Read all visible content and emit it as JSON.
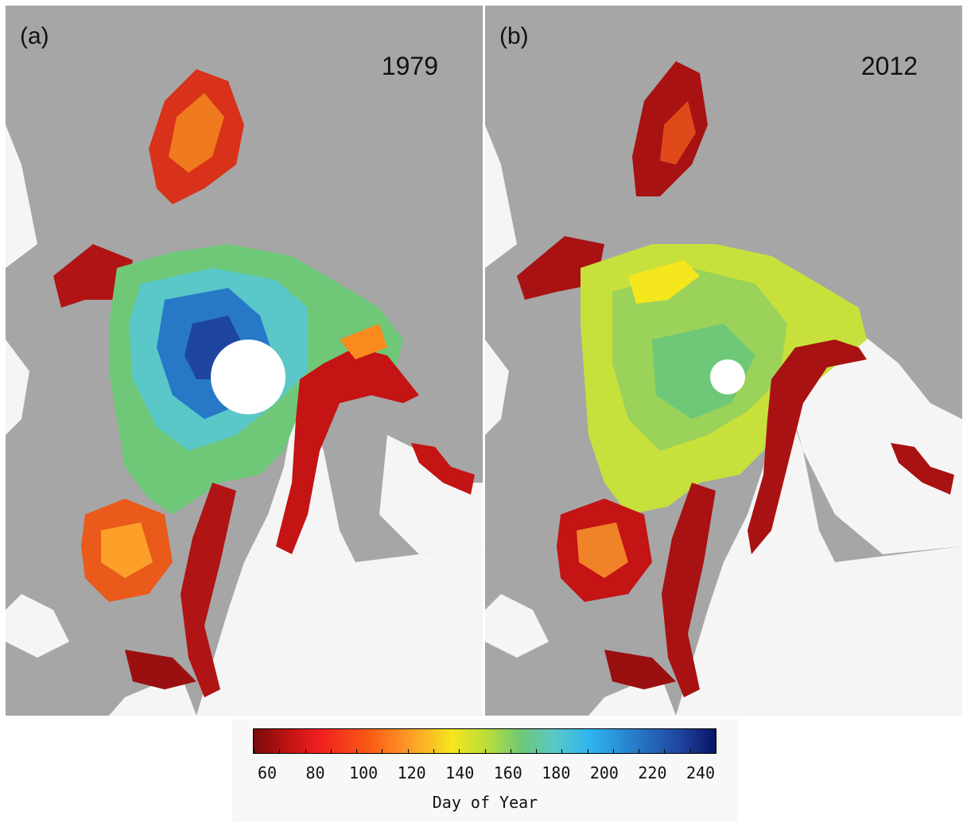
{
  "panels": [
    {
      "label": "(a)",
      "year": "1979"
    },
    {
      "label": "(b)",
      "year": "2012"
    }
  ],
  "colorbar": {
    "title": "Day of Year",
    "ticks": [
      "60",
      "80",
      "100",
      "120",
      "140",
      "160",
      "180",
      "200",
      "220",
      "240"
    ],
    "range": [
      60,
      240
    ]
  },
  "colors": {
    "land": "#a6a6a6",
    "ocean": "#f5f5f5",
    "ramp": [
      "#7a0a0a",
      "#f01e1e",
      "#fc9628",
      "#f5e61e",
      "#6ec878",
      "#2db4f0",
      "#1e46a0",
      "#0a1464"
    ]
  }
}
